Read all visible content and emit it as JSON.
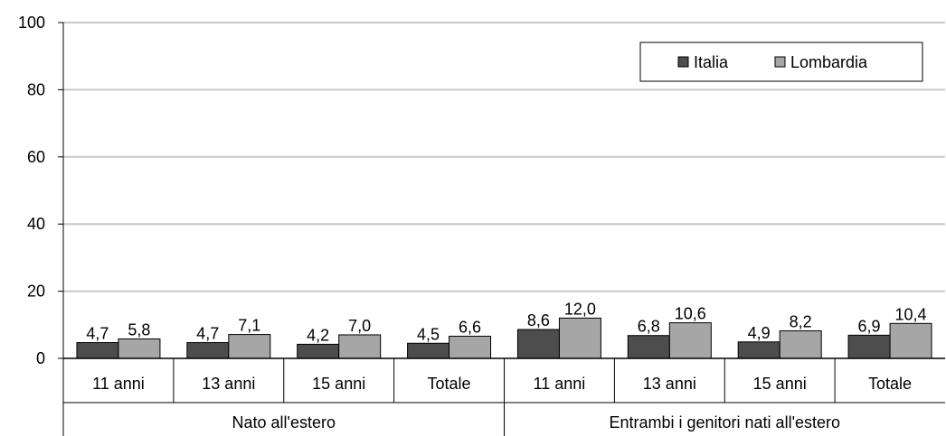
{
  "chart_data": {
    "type": "bar",
    "title": "",
    "xlabel": "",
    "ylabel": "",
    "ylim": [
      0,
      100
    ],
    "yticks": [
      0,
      20,
      40,
      60,
      80,
      100
    ],
    "grid": true,
    "legend": {
      "placement": "top-right",
      "entries": [
        "Italia",
        "Lombardia"
      ]
    },
    "groups": [
      {
        "label": "Nato all'estero",
        "categories": [
          "11 anni",
          "13 anni",
          "15 anni",
          "Totale"
        ]
      },
      {
        "label": "Entrambi i genitori nati all'estero",
        "categories": [
          "11 anni",
          "13 anni",
          "15 anni",
          "Totale"
        ]
      }
    ],
    "categories": [
      "11 anni",
      "13 anni",
      "15 anni",
      "Totale",
      "11 anni",
      "13 anni",
      "15 anni",
      "Totale"
    ],
    "series": [
      {
        "name": "Italia",
        "color": "#4d4d4d",
        "values": [
          4.7,
          4.7,
          4.2,
          4.5,
          8.6,
          6.8,
          4.9,
          6.9
        ],
        "labels": [
          "4,7",
          "4,7",
          "4,2",
          "4,5",
          "8,6",
          "6,8",
          "4,9",
          "6,9"
        ]
      },
      {
        "name": "Lombardia",
        "color": "#a6a6a6",
        "values": [
          5.8,
          7.1,
          7.0,
          6.6,
          12.0,
          10.6,
          8.2,
          10.4
        ],
        "labels": [
          "5,8",
          "7,1",
          "7,0",
          "6,6",
          "12,0",
          "10,6",
          "8,2",
          "10,4"
        ]
      }
    ]
  }
}
